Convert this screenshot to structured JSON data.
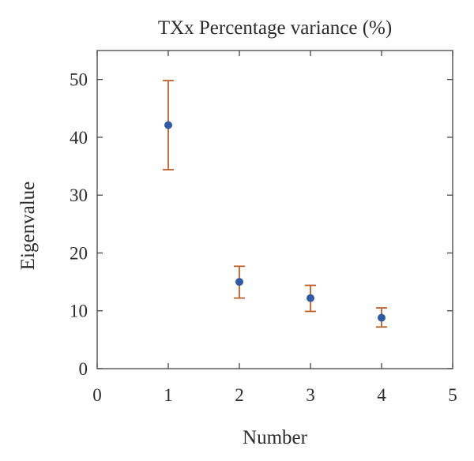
{
  "chart_data": {
    "type": "scatter",
    "title": "TXx Percentage variance (%)",
    "xlabel": "Number",
    "ylabel": "Eigenvalue",
    "xlim": [
      0,
      5
    ],
    "ylim": [
      0,
      55
    ],
    "x_ticks": [
      0,
      1,
      2,
      3,
      4,
      5
    ],
    "y_ticks": [
      0,
      10,
      20,
      30,
      40,
      50
    ],
    "grid": false,
    "colors": {
      "point": "#2e5aa6",
      "error_bar": "#c0602a",
      "axis": "#444444"
    },
    "series": [
      {
        "x": [
          1,
          2,
          3,
          4
        ],
        "y": [
          42.1,
          15.0,
          12.2,
          8.8
        ],
        "error_low": [
          34.4,
          12.2,
          9.9,
          7.2
        ],
        "error_high": [
          49.8,
          17.7,
          14.4,
          10.5
        ]
      }
    ]
  }
}
